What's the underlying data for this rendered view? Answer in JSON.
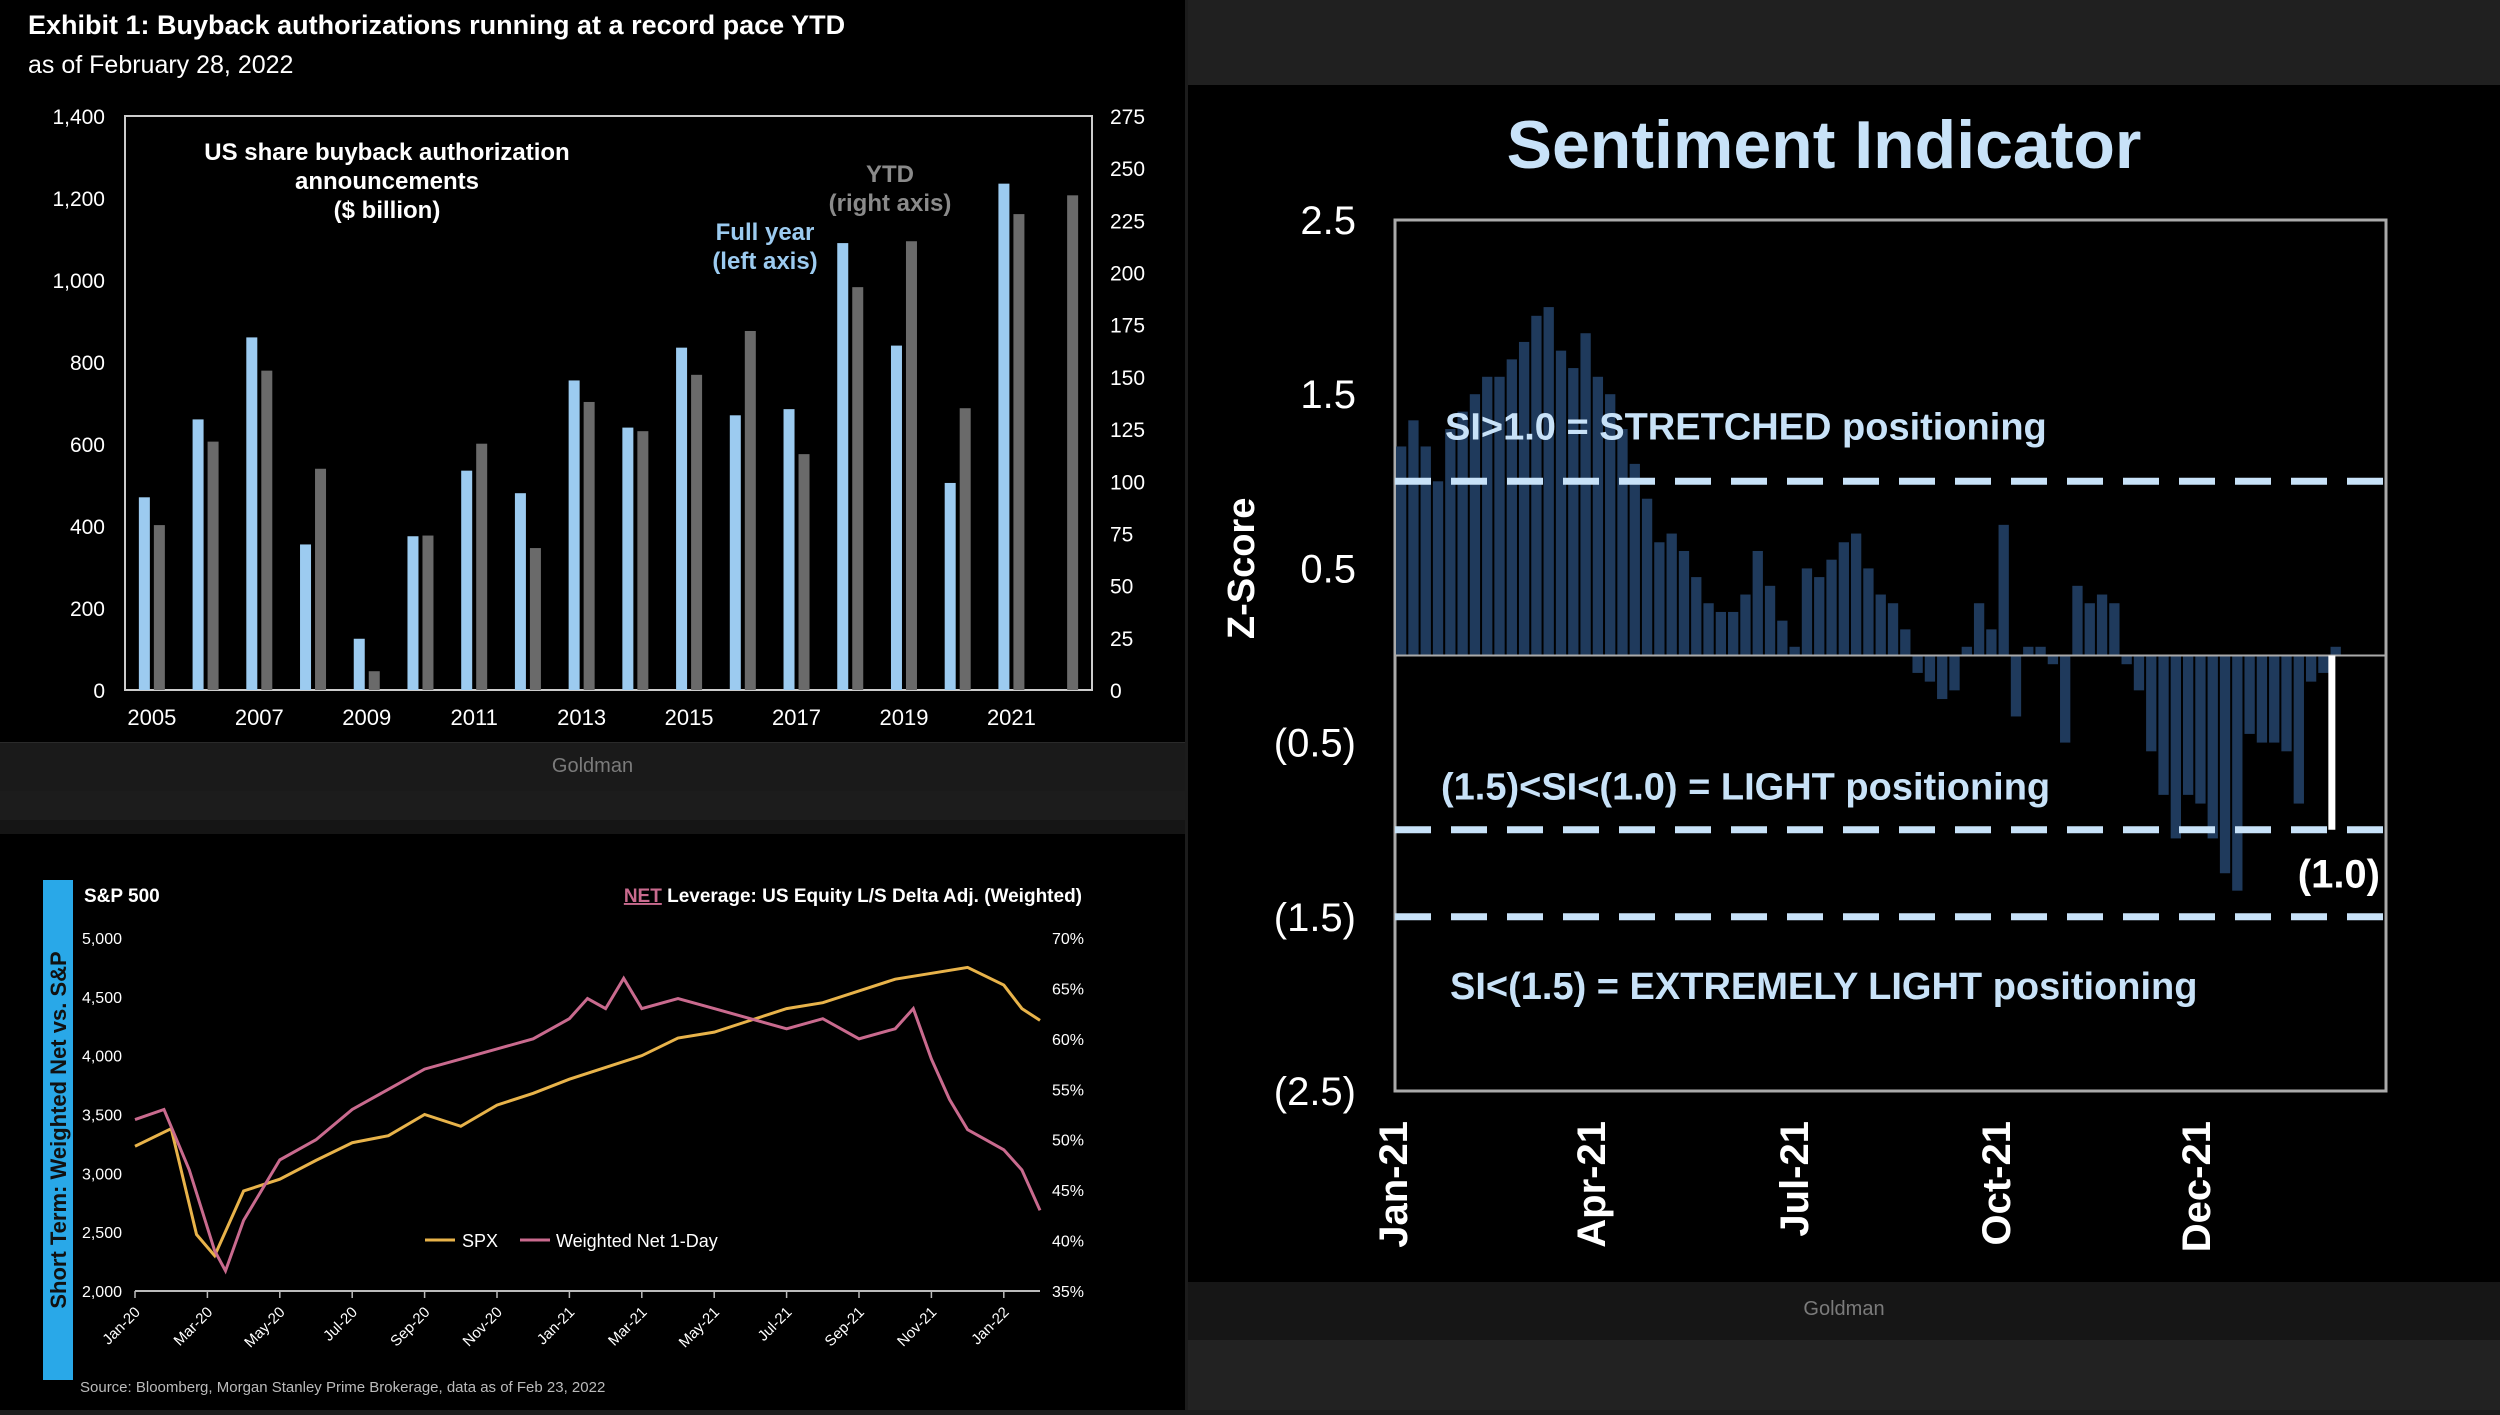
{
  "credits": {
    "left": "Goldman",
    "right": "Goldman"
  },
  "chart_data": [
    {
      "type": "bar",
      "title": "Exhibit 1: Buyback authorizations running at a record pace YTD",
      "subtitle": "as of February 28, 2022",
      "inner_title": [
        "US share buyback authorization",
        "announcements",
        "($ billion)"
      ],
      "xticks": [
        "2005",
        "2007",
        "2009",
        "2011",
        "2013",
        "2015",
        "2017",
        "2019",
        "2021"
      ],
      "ylim_left": [
        0,
        1400
      ],
      "yticks_left": [
        "0",
        "200",
        "400",
        "600",
        "800",
        "1,000",
        "1,200",
        "1,400"
      ],
      "ylim_right": [
        0,
        275
      ],
      "yticks_right": [
        "0",
        "25",
        "50",
        "75",
        "100",
        "125",
        "150",
        "175",
        "200",
        "225",
        "250",
        "275"
      ],
      "categories": [
        "2005",
        "2006",
        "2007",
        "2008",
        "2009",
        "2010",
        "2011",
        "2012",
        "2013",
        "2014",
        "2015",
        "2016",
        "2017",
        "2018",
        "2019",
        "2020",
        "2021",
        "2022"
      ],
      "series": [
        {
          "name": "Full year",
          "axis": "left",
          "color": "#9ccbf0",
          "label": [
            "Full year",
            "(left axis)"
          ],
          "values": [
            470,
            660,
            860,
            355,
            125,
            375,
            535,
            480,
            755,
            640,
            835,
            670,
            685,
            1090,
            840,
            505,
            1235,
            null
          ]
        },
        {
          "name": "YTD",
          "axis": "right",
          "color": "#6a6a6a",
          "label": [
            "YTD",
            "(right axis)"
          ],
          "values": [
            79,
            119,
            153,
            106,
            9,
            74,
            118,
            68,
            138,
            124,
            151,
            172,
            113,
            193,
            215,
            135,
            228,
            237
          ]
        }
      ]
    },
    {
      "type": "line",
      "side_label": "Short Term: Weighted Net vs. S&P",
      "left_axis_title": "S&P 500",
      "right_axis_title_prefix": "NET",
      "right_axis_title": " Leverage: US Equity L/S Delta Adj. (Weighted)",
      "ylim_left": [
        2000,
        5000
      ],
      "yticks_left": [
        "2,000",
        "2,500",
        "3,000",
        "3,500",
        "4,000",
        "4,500",
        "5,000"
      ],
      "ylim_right": [
        35,
        70
      ],
      "yticks_right": [
        "35%",
        "40%",
        "45%",
        "50%",
        "55%",
        "60%",
        "65%",
        "70%"
      ],
      "xticks": [
        "Jan-20",
        "Mar-20",
        "May-20",
        "Jul-20",
        "Sep-20",
        "Nov-20",
        "Jan-21",
        "Mar-21",
        "May-21",
        "Jul-21",
        "Sep-21",
        "Nov-21",
        "Jan-22"
      ],
      "series": [
        {
          "name": "SPX",
          "axis": "left",
          "color": "#e8b34a",
          "x": [
            0,
            1,
            1.7,
            2.2,
            3,
            4,
            5,
            6,
            7,
            8,
            9,
            10,
            11,
            12,
            13,
            14,
            15,
            16,
            17,
            18,
            19,
            20,
            21,
            22,
            23,
            24,
            24.5,
            25
          ],
          "values": [
            3230,
            3380,
            2480,
            2300,
            2850,
            2950,
            3110,
            3260,
            3320,
            3500,
            3400,
            3580,
            3680,
            3800,
            3900,
            4000,
            4150,
            4200,
            4300,
            4400,
            4450,
            4550,
            4650,
            4700,
            4750,
            4600,
            4400,
            4300
          ]
        },
        {
          "name": "Weighted Net 1-Day",
          "axis": "right",
          "color": "#c96a8e",
          "x": [
            0,
            0.8,
            1.5,
            2.2,
            2.5,
            3,
            4,
            5,
            6,
            7,
            8,
            9,
            10,
            11,
            12,
            12.5,
            13,
            13.5,
            14,
            15,
            16,
            17,
            18,
            19,
            20,
            21,
            21.5,
            22,
            22.5,
            23,
            23.5,
            24,
            24.5,
            25
          ],
          "values": [
            52,
            53,
            47,
            39,
            37,
            42,
            48,
            50,
            53,
            55,
            57,
            58,
            59,
            60,
            62,
            64,
            63,
            66,
            63,
            64,
            63,
            62,
            61,
            62,
            60,
            61,
            63,
            58,
            54,
            51,
            50,
            49,
            47,
            43
          ]
        }
      ],
      "legend": [
        "SPX",
        "Weighted Net 1-Day"
      ],
      "source": "Source: Bloomberg, Morgan Stanley Prime Brokerage, data as of Feb 23, 2022"
    },
    {
      "type": "bar",
      "title": "Sentiment Indicator",
      "ylabel": "Z-Score",
      "ylim": [
        -2.5,
        2.5
      ],
      "yticks": [
        "2.5",
        "1.5",
        "0.5",
        "(0.5)",
        "(1.5)",
        "(2.5)"
      ],
      "xticks": [
        "Jan-21",
        "Apr-21",
        "Jul-21",
        "Oct-21",
        "Dec-21"
      ],
      "bar_color": "#1f3a5c",
      "values": [
        1.2,
        1.35,
        1.2,
        1.0,
        1.3,
        1.4,
        1.5,
        1.6,
        1.6,
        1.7,
        1.8,
        1.95,
        2.0,
        1.75,
        1.65,
        1.85,
        1.6,
        1.5,
        1.3,
        1.1,
        0.9,
        0.65,
        0.7,
        0.6,
        0.45,
        0.3,
        0.25,
        0.25,
        0.35,
        0.6,
        0.4,
        0.2,
        0.05,
        0.5,
        0.45,
        0.55,
        0.65,
        0.7,
        0.5,
        0.35,
        0.3,
        0.15,
        -0.1,
        -0.15,
        -0.25,
        -0.2,
        0.05,
        0.3,
        0.15,
        0.75,
        -0.35,
        0.05,
        0.05,
        -0.05,
        -0.5,
        0.4,
        0.3,
        0.35,
        0.3,
        -0.05,
        -0.2,
        -0.55,
        -0.8,
        -1.05,
        -0.8,
        -0.85,
        -1.05,
        -1.25,
        -1.35,
        -0.45,
        -0.5,
        -0.5,
        -0.55,
        -0.85,
        -0.15,
        -0.1,
        0.05
      ],
      "lines": [
        {
          "value": 1.0,
          "label": "SI>1.0 = STRETCHED positioning"
        },
        {
          "value": -1.0,
          "label": "(1.5)<SI<(1.0) = LIGHT positioning"
        },
        {
          "value": -1.5,
          "label": "SI<(1.5) = EXTREMELY LIGHT positioning"
        }
      ],
      "current_value_label": "(1.0)",
      "current_value": -1.0
    }
  ]
}
